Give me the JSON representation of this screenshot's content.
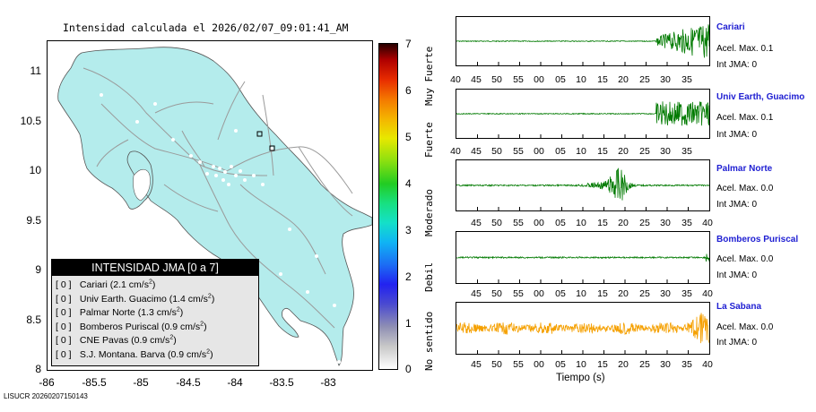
{
  "map": {
    "title": "Intensidad calculada el 2026/02/07_09:01:41_AM",
    "y_ticks": [
      "11",
      "10.5",
      "10",
      "9.5",
      "9",
      "8.5",
      "8"
    ],
    "x_ticks": [
      "-86",
      "-85.5",
      "-85",
      "-84.5",
      "-84",
      "-83.5",
      "-83"
    ]
  },
  "legend": {
    "title": "INTENSIDAD JMA [0 a 7]",
    "items": [
      {
        "level": "[ 0 ]",
        "station": "Cariari",
        "value": "(2.1 cm/s",
        "exp": "2",
        "close": ")"
      },
      {
        "level": "[ 0 ]",
        "station": "Univ Earth. Guacimo",
        "value": "(1.4 cm/s",
        "exp": "2",
        "close": ")"
      },
      {
        "level": "[ 0 ]",
        "station": "Palmar Norte",
        "value": "(1.3 cm/s",
        "exp": "2",
        "close": ")"
      },
      {
        "level": "[ 0 ]",
        "station": "Bomberos Puriscal",
        "value": "(0.9 cm/s",
        "exp": "2",
        "close": ")"
      },
      {
        "level": "[ 0 ]",
        "station": "CNE Pavas",
        "value": "(0.9 cm/s",
        "exp": "2",
        "close": ")"
      },
      {
        "level": "[ 0 ]",
        "station": "S.J. Montana. Barva",
        "value": "(0.9 cm/s",
        "exp": "2",
        "close": ")"
      }
    ]
  },
  "colorbar": {
    "ticks": [
      "7",
      "6",
      "5",
      "4",
      "3",
      "2",
      "1",
      "0"
    ],
    "categories": [
      "Muy Fuerte",
      "Fuerte",
      "Moderado",
      "Debil",
      "No sentido"
    ]
  },
  "panels": [
    {
      "station": "Cariari",
      "accel": "Acel. Max. 0.1",
      "intensity": "Int JMA: 0",
      "color": "#007a00",
      "ticks": [
        "40",
        "45",
        "50",
        "55",
        "00",
        "05",
        "10",
        "15",
        "20",
        "25",
        "30",
        "35"
      ]
    },
    {
      "station": "Univ Earth, Guacimo",
      "accel": "Acel. Max. 0.1",
      "intensity": "Int JMA: 0",
      "color": "#007a00",
      "ticks": [
        "40",
        "45",
        "50",
        "55",
        "00",
        "05",
        "10",
        "15",
        "20",
        "25",
        "30",
        "35"
      ]
    },
    {
      "station": "Palmar Norte",
      "accel": "Acel. Max. 0.0",
      "intensity": "Int JMA: 0",
      "color": "#007a00",
      "ticks": [
        "45",
        "50",
        "55",
        "00",
        "05",
        "10",
        "15",
        "20",
        "25",
        "30",
        "35",
        "40"
      ]
    },
    {
      "station": "Bomberos Puriscal",
      "accel": "Acel. Max. 0.0",
      "intensity": "Int JMA: 0",
      "color": "#007a00",
      "ticks": [
        "45",
        "50",
        "55",
        "00",
        "05",
        "10",
        "15",
        "20",
        "25",
        "30",
        "35",
        "40"
      ]
    },
    {
      "station": "La Sabana",
      "accel": "Acel. Max. 0.0",
      "intensity": "Int JMA: 0",
      "color": "#f5a000",
      "ticks": [
        "45",
        "50",
        "55",
        "00",
        "05",
        "10",
        "15",
        "20",
        "25",
        "30",
        "35",
        "40"
      ]
    }
  ],
  "time_axis_label": "Tiempo (s)",
  "footer": "LISUCR 20260207150143"
}
